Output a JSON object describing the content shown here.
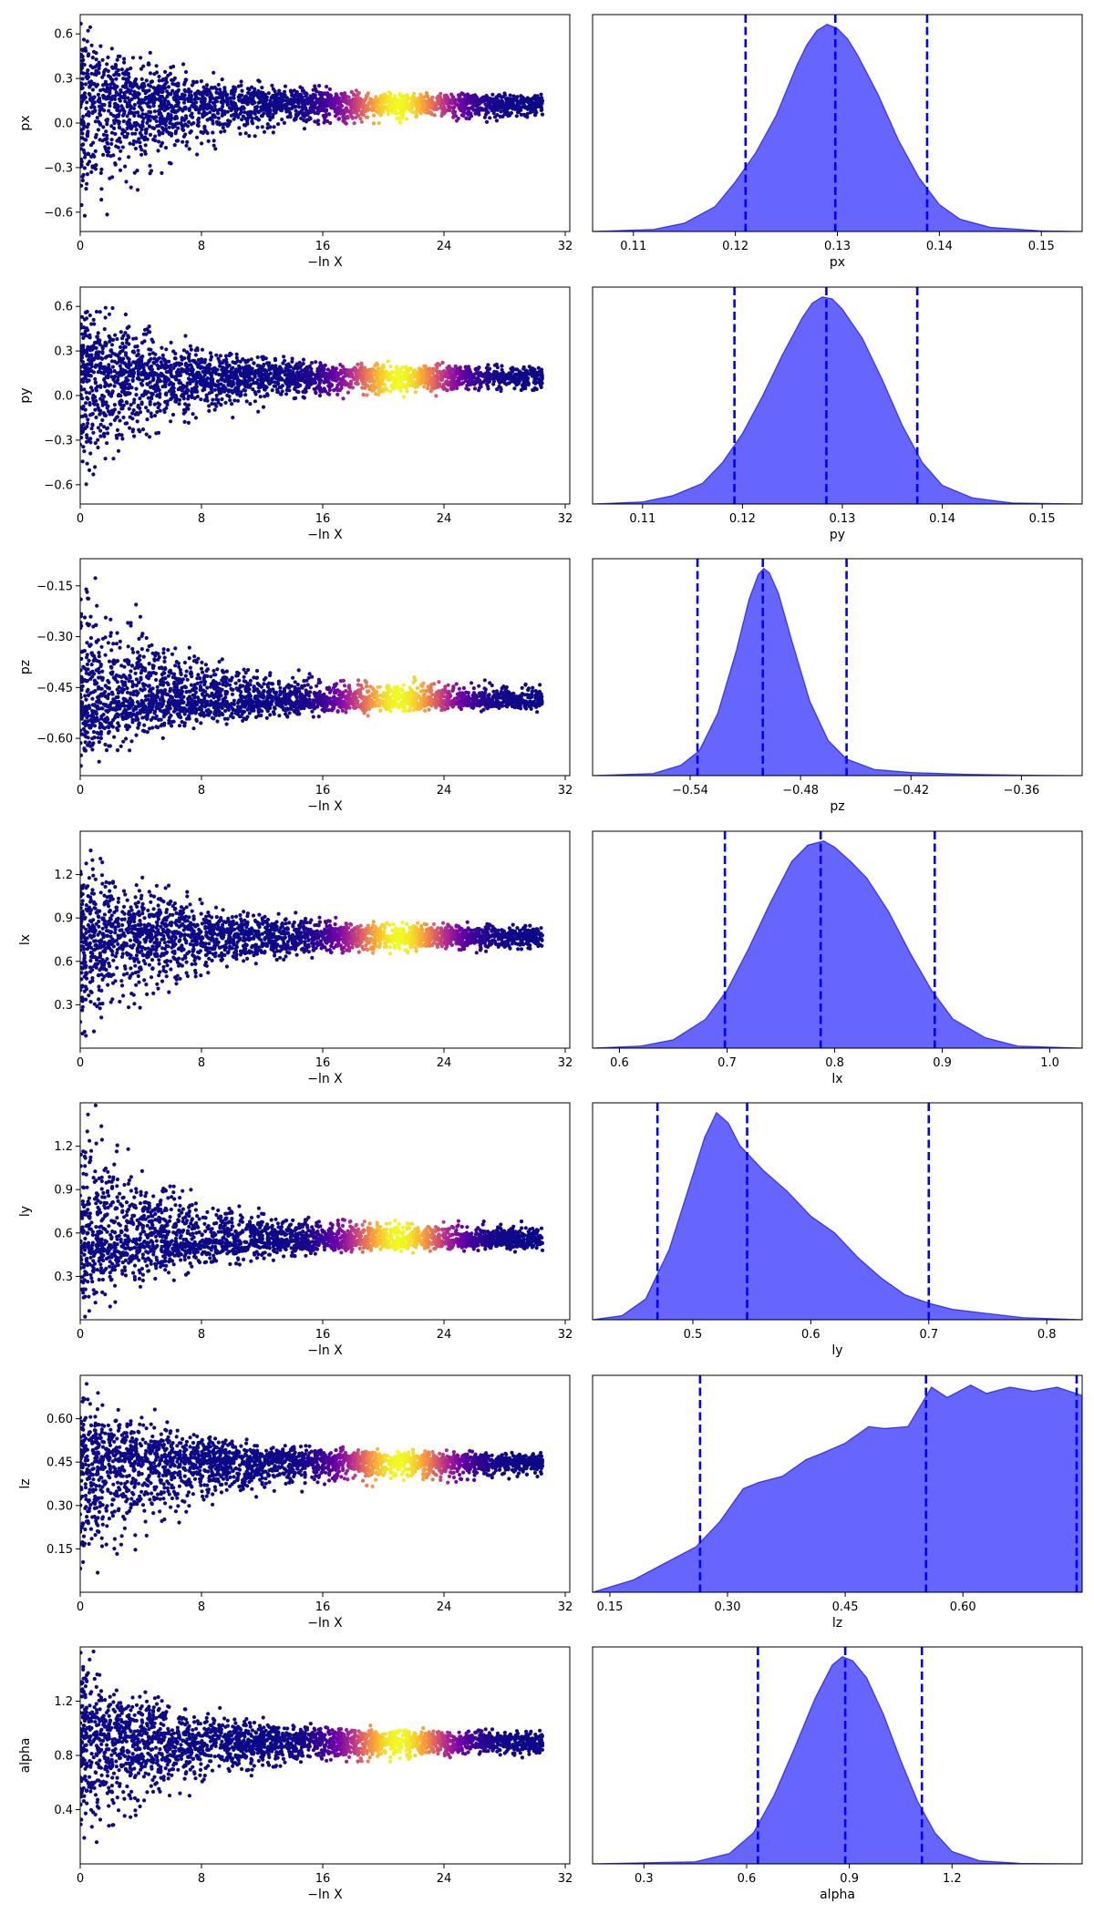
{
  "chart_data": {
    "type": "scatter",
    "trace_xlabel": "−ln X",
    "trace_xlim": [
      0,
      32.3
    ],
    "trace_xticks": [
      0,
      8,
      16,
      24,
      32
    ],
    "colormap": [
      "#0d0887",
      "#6a00a8",
      "#b12a90",
      "#e16462",
      "#fca636",
      "#f0f921"
    ],
    "posterior_color": "#0000ff",
    "quantile_line_color": "#0000ff",
    "params": [
      {
        "name": "px",
        "trace_ylim": [
          -0.73,
          0.73
        ],
        "trace_yticks": [
          -0.6,
          -0.3,
          0.0,
          0.3,
          0.6
        ],
        "trace_ytick_labels": [
          "−0.6",
          "−0.3",
          "0.0",
          "0.3",
          "0.6"
        ],
        "converged_value": 0.13,
        "initial_spread": [
          -0.73,
          0.73
        ],
        "hist_xlim": [
          0.106,
          0.154
        ],
        "hist_xticks": [
          0.11,
          0.12,
          0.13,
          0.14,
          0.15
        ],
        "hist_xtick_labels": [
          "0.11",
          "0.12",
          "0.13",
          "0.14",
          "0.15"
        ],
        "quantiles": [
          0.121,
          0.1298,
          0.1388
        ],
        "density_x": [
          0.106,
          0.112,
          0.115,
          0.118,
          0.12,
          0.122,
          0.124,
          0.126,
          0.127,
          0.128,
          0.129,
          0.13,
          0.131,
          0.132,
          0.134,
          0.136,
          0.138,
          0.14,
          0.142,
          0.145,
          0.15,
          0.154
        ],
        "density_y": [
          0.0,
          0.01,
          0.04,
          0.12,
          0.24,
          0.38,
          0.56,
          0.8,
          0.9,
          0.97,
          1.0,
          0.98,
          0.93,
          0.85,
          0.66,
          0.44,
          0.26,
          0.13,
          0.06,
          0.02,
          0.003,
          0.0
        ]
      },
      {
        "name": "py",
        "trace_ylim": [
          -0.73,
          0.73
        ],
        "trace_yticks": [
          -0.6,
          -0.3,
          0.0,
          0.3,
          0.6
        ],
        "trace_ytick_labels": [
          "−0.6",
          "−0.3",
          "0.0",
          "0.3",
          "0.6"
        ],
        "converged_value": 0.128,
        "initial_spread": [
          -0.73,
          0.73
        ],
        "hist_xlim": [
          0.105,
          0.154
        ],
        "hist_xticks": [
          0.11,
          0.12,
          0.13,
          0.14,
          0.15
        ],
        "hist_xtick_labels": [
          "0.11",
          "0.12",
          "0.13",
          "0.14",
          "0.15"
        ],
        "quantiles": [
          0.1192,
          0.1284,
          0.1375
        ],
        "density_x": [
          0.105,
          0.11,
          0.113,
          0.116,
          0.118,
          0.12,
          0.122,
          0.124,
          0.126,
          0.127,
          0.128,
          0.129,
          0.13,
          0.132,
          0.134,
          0.136,
          0.138,
          0.14,
          0.143,
          0.147,
          0.154
        ],
        "density_y": [
          0.0,
          0.01,
          0.04,
          0.1,
          0.2,
          0.34,
          0.52,
          0.72,
          0.9,
          0.97,
          1.0,
          0.99,
          0.94,
          0.8,
          0.6,
          0.38,
          0.2,
          0.09,
          0.03,
          0.005,
          0.0
        ]
      },
      {
        "name": "pz",
        "trace_ylim": [
          -0.71,
          -0.07
        ],
        "trace_yticks": [
          -0.6,
          -0.45,
          -0.3,
          -0.15
        ],
        "trace_ytick_labels": [
          "−0.60",
          "−0.45",
          "−0.30",
          "−0.15"
        ],
        "converged_value": -0.49,
        "initial_spread": [
          -0.71,
          -0.07
        ],
        "hist_xlim": [
          -0.593,
          -0.327
        ],
        "hist_xticks": [
          -0.54,
          -0.48,
          -0.42,
          -0.36
        ],
        "hist_xtick_labels": [
          "−0.54",
          "−0.48",
          "−0.42",
          "−0.36"
        ],
        "quantiles": [
          -0.536,
          -0.5005,
          -0.455
        ],
        "density_x": [
          -0.593,
          -0.56,
          -0.545,
          -0.535,
          -0.525,
          -0.515,
          -0.508,
          -0.503,
          -0.5,
          -0.497,
          -0.492,
          -0.485,
          -0.475,
          -0.465,
          -0.455,
          -0.44,
          -0.42,
          -0.39,
          -0.36,
          -0.327
        ],
        "density_y": [
          0.0,
          0.01,
          0.05,
          0.12,
          0.3,
          0.6,
          0.85,
          0.97,
          1.0,
          0.98,
          0.88,
          0.66,
          0.36,
          0.17,
          0.08,
          0.03,
          0.015,
          0.006,
          0.002,
          0.0
        ]
      },
      {
        "name": "lx",
        "trace_ylim": [
          0.0,
          1.5
        ],
        "trace_yticks": [
          0.3,
          0.6,
          0.9,
          1.2
        ],
        "trace_ytick_labels": [
          "0.3",
          "0.6",
          "0.9",
          "1.2"
        ],
        "converged_value": 0.77,
        "initial_spread": [
          0.0,
          1.5
        ],
        "hist_xlim": [
          0.575,
          1.03
        ],
        "hist_xticks": [
          0.6,
          0.7,
          0.8,
          0.9,
          1.0
        ],
        "hist_xtick_labels": [
          "0.6",
          "0.7",
          "0.8",
          "0.9",
          "1.0"
        ],
        "quantiles": [
          0.698,
          0.787,
          0.893
        ],
        "density_x": [
          0.575,
          0.62,
          0.65,
          0.68,
          0.7,
          0.72,
          0.74,
          0.76,
          0.775,
          0.79,
          0.8,
          0.815,
          0.83,
          0.85,
          0.87,
          0.89,
          0.91,
          0.94,
          0.97,
          1.03
        ],
        "density_y": [
          0.0,
          0.01,
          0.04,
          0.14,
          0.28,
          0.48,
          0.7,
          0.9,
          0.98,
          1.0,
          0.97,
          0.9,
          0.82,
          0.66,
          0.46,
          0.28,
          0.14,
          0.05,
          0.01,
          0.0
        ]
      },
      {
        "name": "ly",
        "trace_ylim": [
          0.0,
          1.5
        ],
        "trace_yticks": [
          0.3,
          0.6,
          0.9,
          1.2
        ],
        "trace_ytick_labels": [
          "0.3",
          "0.6",
          "0.9",
          "1.2"
        ],
        "converged_value": 0.55,
        "initial_spread": [
          0.0,
          1.5
        ],
        "hist_xlim": [
          0.415,
          0.83
        ],
        "hist_xticks": [
          0.5,
          0.6,
          0.7,
          0.8
        ],
        "hist_xtick_labels": [
          "0.5",
          "0.6",
          "0.7",
          "0.8"
        ],
        "quantiles": [
          0.47,
          0.546,
          0.7
        ],
        "density_x": [
          0.415,
          0.44,
          0.46,
          0.48,
          0.5,
          0.51,
          0.52,
          0.53,
          0.54,
          0.56,
          0.58,
          0.6,
          0.62,
          0.64,
          0.66,
          0.68,
          0.7,
          0.72,
          0.75,
          0.78,
          0.83
        ],
        "density_y": [
          0.0,
          0.02,
          0.1,
          0.34,
          0.7,
          0.88,
          1.0,
          0.95,
          0.84,
          0.72,
          0.62,
          0.5,
          0.42,
          0.3,
          0.2,
          0.12,
          0.08,
          0.05,
          0.03,
          0.01,
          0.0
        ]
      },
      {
        "name": "lz",
        "trace_ylim": [
          0.0,
          0.75
        ],
        "trace_yticks": [
          0.15,
          0.3,
          0.45,
          0.6
        ],
        "trace_ytick_labels": [
          "0.15",
          "0.30",
          "0.45",
          "0.60"
        ],
        "converged_value": 0.45,
        "initial_spread": [
          0.0,
          0.75
        ],
        "hist_xlim": [
          0.128,
          0.752
        ],
        "hist_xticks": [
          0.15,
          0.3,
          0.45,
          0.6
        ],
        "hist_xtick_labels": [
          "0.15",
          "0.30",
          "0.45",
          "0.60"
        ],
        "quantiles": [
          0.265,
          0.553,
          0.745
        ],
        "density_x": [
          0.128,
          0.18,
          0.22,
          0.26,
          0.29,
          0.32,
          0.34,
          0.37,
          0.4,
          0.42,
          0.45,
          0.48,
          0.5,
          0.53,
          0.56,
          0.58,
          0.61,
          0.63,
          0.66,
          0.69,
          0.72,
          0.752
        ],
        "density_y": [
          0.0,
          0.06,
          0.14,
          0.22,
          0.34,
          0.5,
          0.53,
          0.56,
          0.64,
          0.67,
          0.72,
          0.8,
          0.79,
          0.8,
          0.99,
          0.94,
          1.0,
          0.96,
          0.99,
          0.97,
          0.99,
          0.95
        ]
      },
      {
        "name": "alpha",
        "trace_ylim": [
          0.0,
          1.6
        ],
        "trace_yticks": [
          0.4,
          0.8,
          1.2
        ],
        "trace_ytick_labels": [
          "0.4",
          "0.8",
          "1.2"
        ],
        "converged_value": 0.9,
        "initial_spread": [
          0.0,
          1.6
        ],
        "hist_xlim": [
          0.15,
          1.58
        ],
        "hist_xticks": [
          0.3,
          0.6,
          0.9,
          1.2
        ],
        "hist_xtick_labels": [
          "0.3",
          "0.6",
          "0.9",
          "1.2"
        ],
        "quantiles": [
          0.633,
          0.888,
          1.112
        ],
        "density_x": [
          0.15,
          0.45,
          0.55,
          0.62,
          0.68,
          0.74,
          0.8,
          0.85,
          0.88,
          0.91,
          0.95,
          1.0,
          1.05,
          1.1,
          1.15,
          1.2,
          1.28,
          1.4,
          1.58
        ],
        "density_y": [
          0.0,
          0.01,
          0.05,
          0.15,
          0.33,
          0.56,
          0.8,
          0.96,
          1.0,
          0.98,
          0.9,
          0.72,
          0.5,
          0.3,
          0.15,
          0.06,
          0.015,
          0.002,
          0.0
        ]
      }
    ]
  }
}
